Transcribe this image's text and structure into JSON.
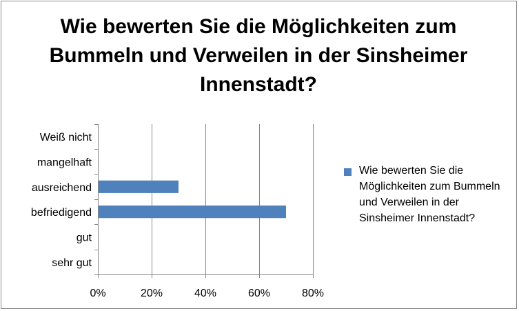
{
  "chart_data": {
    "type": "bar",
    "orientation": "horizontal",
    "title": "Wie bewerten Sie die Möglichkeiten zum Bummeln und Verweilen in der Sinsheimer Innenstadt?",
    "categories": [
      "sehr gut",
      "gut",
      "befriedigend",
      "ausreichend",
      "mangelhaft",
      "Weiß nicht"
    ],
    "series": [
      {
        "name": "Wie bewerten Sie die Möglichkeiten zum Bummeln und Verweilen in der Sinsheimer Innenstadt?",
        "values": [
          0,
          0,
          0.7,
          0.3,
          0,
          0
        ],
        "color": "#4F81BD"
      }
    ],
    "xlim": [
      0,
      0.8
    ],
    "xticks": [
      0,
      0.2,
      0.4,
      0.6,
      0.8
    ],
    "xtick_labels": [
      "0%",
      "20%",
      "40%",
      "60%",
      "80%"
    ],
    "grid": true,
    "legend_position": "right"
  }
}
